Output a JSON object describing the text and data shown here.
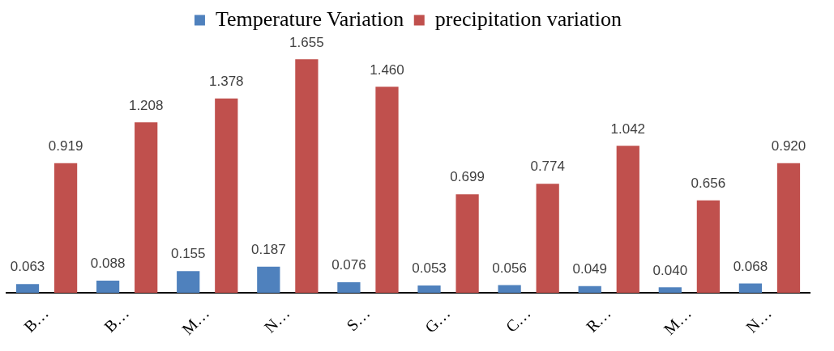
{
  "chart_data": {
    "type": "bar",
    "categories": [
      "B…",
      "B…",
      "M…",
      "N…",
      "S…",
      "G…",
      "C…",
      "R…",
      "M…",
      "N…"
    ],
    "series": [
      {
        "name": "Temperature Variation",
        "color": "#4f81bd",
        "values": [
          0.063,
          0.088,
          0.155,
          0.187,
          0.076,
          0.053,
          0.056,
          0.049,
          0.04,
          0.068
        ],
        "value_labels": [
          "0.063",
          "0.088",
          "0.155",
          "0.187",
          "0.076",
          "0.053",
          "0.056",
          "0.049",
          "0.040",
          "0.068"
        ]
      },
      {
        "name": "precipitation variation",
        "color": "#c0504d",
        "values": [
          0.919,
          1.208,
          1.378,
          1.655,
          1.46,
          0.699,
          0.774,
          1.042,
          0.656,
          0.92
        ],
        "value_labels": [
          "0.919",
          "1.208",
          "1.378",
          "1.655",
          "1.460",
          "0.699",
          "0.774",
          "1.042",
          "0.656",
          "0.920"
        ]
      }
    ],
    "legend": "top",
    "grid": false
  }
}
